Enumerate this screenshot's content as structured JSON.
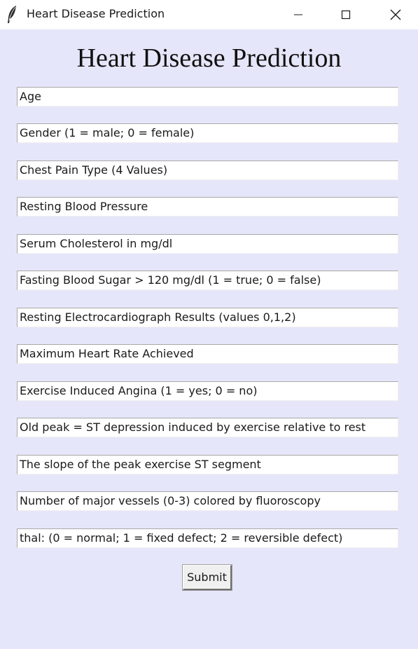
{
  "window": {
    "title": "Heart Disease Prediction",
    "icon": "feather-icon"
  },
  "window_controls": {
    "minimize_icon": "minimize-icon",
    "maximize_icon": "maximize-icon",
    "close_icon": "close-icon"
  },
  "heading": "Heart Disease Prediction",
  "fields": [
    {
      "value": "Age"
    },
    {
      "value": "Gender (1 = male; 0 = female)"
    },
    {
      "value": "Chest Pain Type (4 Values)"
    },
    {
      "value": "Resting Blood Pressure"
    },
    {
      "value": "Serum Cholesterol in mg/dl"
    },
    {
      "value": "Fasting Blood Sugar > 120 mg/dl (1 = true; 0 = false)"
    },
    {
      "value": "Resting Electrocardiograph Results (values 0,1,2)"
    },
    {
      "value": "Maximum Heart Rate Achieved"
    },
    {
      "value": "Exercise Induced Angina (1 = yes; 0 = no)"
    },
    {
      "value": "Old peak = ST depression induced by exercise relative to rest"
    },
    {
      "value": "The slope of the peak exercise ST segment"
    },
    {
      "value": "Number of major vessels (0-3) colored by fluoroscopy"
    },
    {
      "value": "thal: (0 = normal; 1 = fixed defect; 2 = reversible defect)"
    }
  ],
  "submit_label": "Submit",
  "colors": {
    "background": "#e6e6fa",
    "titlebar": "#ffffff",
    "field_background": "#ffffff",
    "button_face": "#f0f0f0"
  }
}
